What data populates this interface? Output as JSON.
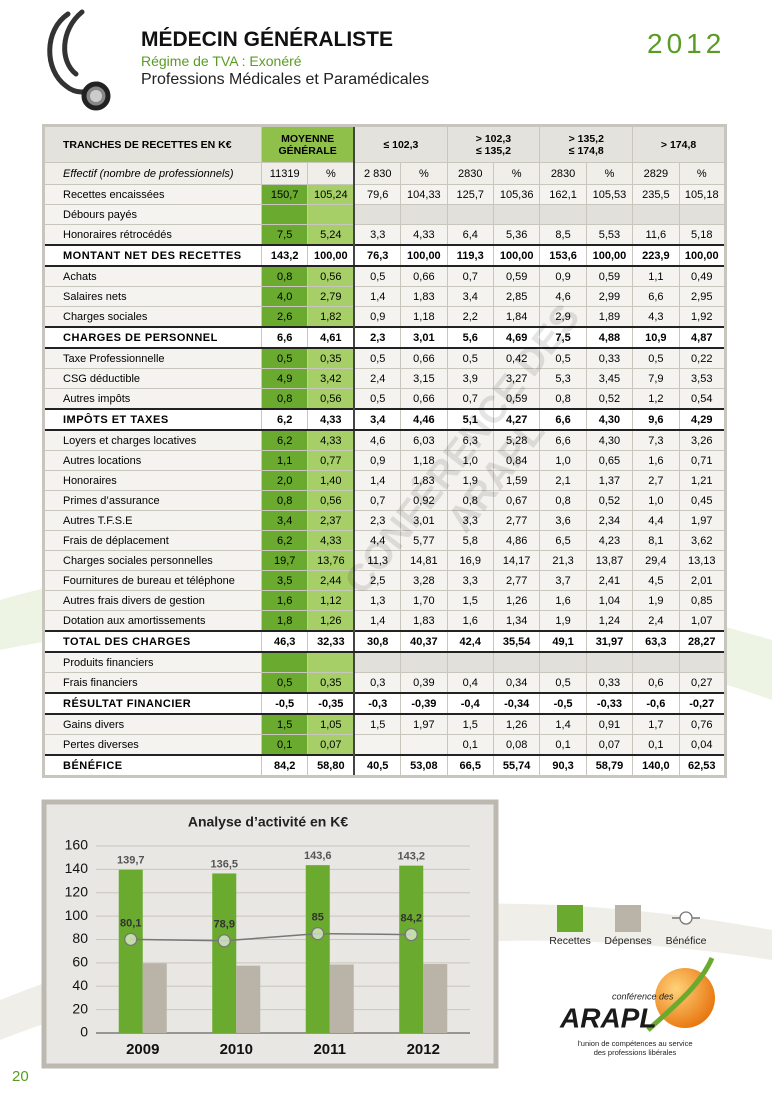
{
  "header": {
    "title": "MÉDECIN GÉNÉRALISTE",
    "subtitle": "Régime de TVA : Exonéré",
    "category": "Professions Médicales et Paramédicales",
    "year": "2012"
  },
  "watermark": "CONFÉRENCE DES ARAPL",
  "table": {
    "corner": "TRANCHES DE RECETTES EN K€",
    "groups": [
      [
        "MOYENNE",
        "GÉNÉRALE"
      ],
      [
        "≤ 102,3"
      ],
      [
        "> 102,3",
        "≤ 135,2"
      ],
      [
        "> 135,2",
        "≤ 174,8"
      ],
      [
        "> 174,8"
      ]
    ],
    "effectif": {
      "label": "Effectif (nombre de professionnels)",
      "cells": [
        "11319",
        "%",
        "2 830",
        "%",
        "2830",
        "%",
        "2830",
        "%",
        "2829",
        "%"
      ]
    },
    "rows": [
      {
        "label": "Recettes encaissées",
        "cells": [
          "150,7",
          "105,24",
          "79,6",
          "104,33",
          "125,7",
          "105,36",
          "162,1",
          "105,53",
          "235,5",
          "105,18"
        ]
      },
      {
        "label": "Débours payés",
        "cells": [
          null,
          null,
          null,
          null,
          null,
          null,
          null,
          null,
          null,
          null
        ]
      },
      {
        "label": "Honoraires rétrocédés",
        "cells": [
          "7,5",
          "5,24",
          "3,3",
          "4,33",
          "6,4",
          "5,36",
          "8,5",
          "5,53",
          "11,6",
          "5,18"
        ]
      },
      {
        "label": "MONTANT NET DES RECETTES",
        "bold": true,
        "cells": [
          "143,2",
          "100,00",
          "76,3",
          "100,00",
          "119,3",
          "100,00",
          "153,6",
          "100,00",
          "223,9",
          "100,00"
        ]
      },
      {
        "label": "Achats",
        "cells": [
          "0,8",
          "0,56",
          "0,5",
          "0,66",
          "0,7",
          "0,59",
          "0,9",
          "0,59",
          "1,1",
          "0,49"
        ]
      },
      {
        "label": "Salaires nets",
        "cells": [
          "4,0",
          "2,79",
          "1,4",
          "1,83",
          "3,4",
          "2,85",
          "4,6",
          "2,99",
          "6,6",
          "2,95"
        ]
      },
      {
        "label": "Charges sociales",
        "cells": [
          "2,6",
          "1,82",
          "0,9",
          "1,18",
          "2,2",
          "1,84",
          "2,9",
          "1,89",
          "4,3",
          "1,92"
        ]
      },
      {
        "label": "CHARGES DE PERSONNEL",
        "bold": true,
        "cells": [
          "6,6",
          "4,61",
          "2,3",
          "3,01",
          "5,6",
          "4,69",
          "7,5",
          "4,88",
          "10,9",
          "4,87"
        ]
      },
      {
        "label": "Taxe Professionnelle",
        "cells": [
          "0,5",
          "0,35",
          "0,5",
          "0,66",
          "0,5",
          "0,42",
          "0,5",
          "0,33",
          "0,5",
          "0,22"
        ]
      },
      {
        "label": "CSG déductible",
        "cells": [
          "4,9",
          "3,42",
          "2,4",
          "3,15",
          "3,9",
          "3,27",
          "5,3",
          "3,45",
          "7,9",
          "3,53"
        ]
      },
      {
        "label": "Autres impôts",
        "cells": [
          "0,8",
          "0,56",
          "0,5",
          "0,66",
          "0,7",
          "0,59",
          "0,8",
          "0,52",
          "1,2",
          "0,54"
        ]
      },
      {
        "label": "IMPÔTS ET TAXES",
        "bold": true,
        "cells": [
          "6,2",
          "4,33",
          "3,4",
          "4,46",
          "5,1",
          "4,27",
          "6,6",
          "4,30",
          "9,6",
          "4,29"
        ]
      },
      {
        "label": "Loyers et charges locatives",
        "cells": [
          "6,2",
          "4,33",
          "4,6",
          "6,03",
          "6,3",
          "5,28",
          "6,6",
          "4,30",
          "7,3",
          "3,26"
        ]
      },
      {
        "label": "Autres locations",
        "cells": [
          "1,1",
          "0,77",
          "0,9",
          "1,18",
          "1,0",
          "0,84",
          "1,0",
          "0,65",
          "1,6",
          "0,71"
        ]
      },
      {
        "label": "Honoraires",
        "cells": [
          "2,0",
          "1,40",
          "1,4",
          "1,83",
          "1,9",
          "1,59",
          "2,1",
          "1,37",
          "2,7",
          "1,21"
        ]
      },
      {
        "label": "Primes d’assurance",
        "cells": [
          "0,8",
          "0,56",
          "0,7",
          "0,92",
          "0,8",
          "0,67",
          "0,8",
          "0,52",
          "1,0",
          "0,45"
        ]
      },
      {
        "label": "Autres T.F.S.E",
        "cells": [
          "3,4",
          "2,37",
          "2,3",
          "3,01",
          "3,3",
          "2,77",
          "3,6",
          "2,34",
          "4,4",
          "1,97"
        ]
      },
      {
        "label": "Frais de déplacement",
        "cells": [
          "6,2",
          "4,33",
          "4,4",
          "5,77",
          "5,8",
          "4,86",
          "6,5",
          "4,23",
          "8,1",
          "3,62"
        ]
      },
      {
        "label": "Charges sociales personnelles",
        "cells": [
          "19,7",
          "13,76",
          "11,3",
          "14,81",
          "16,9",
          "14,17",
          "21,3",
          "13,87",
          "29,4",
          "13,13"
        ]
      },
      {
        "label": "Fournitures de bureau et téléphone",
        "cells": [
          "3,5",
          "2,44",
          "2,5",
          "3,28",
          "3,3",
          "2,77",
          "3,7",
          "2,41",
          "4,5",
          "2,01"
        ]
      },
      {
        "label": "Autres frais divers de gestion",
        "cells": [
          "1,6",
          "1,12",
          "1,3",
          "1,70",
          "1,5",
          "1,26",
          "1,6",
          "1,04",
          "1,9",
          "0,85"
        ]
      },
      {
        "label": "Dotation aux amortissements",
        "cells": [
          "1,8",
          "1,26",
          "1,4",
          "1,83",
          "1,6",
          "1,34",
          "1,9",
          "1,24",
          "2,4",
          "1,07"
        ]
      },
      {
        "label": "TOTAL DES CHARGES",
        "bold": true,
        "cells": [
          "46,3",
          "32,33",
          "30,8",
          "40,37",
          "42,4",
          "35,54",
          "49,1",
          "31,97",
          "63,3",
          "28,27"
        ]
      },
      {
        "label": "Produits financiers",
        "cells": [
          null,
          null,
          null,
          null,
          null,
          null,
          null,
          null,
          null,
          null
        ]
      },
      {
        "label": "Frais financiers",
        "cells": [
          "0,5",
          "0,35",
          "0,3",
          "0,39",
          "0,4",
          "0,34",
          "0,5",
          "0,33",
          "0,6",
          "0,27"
        ]
      },
      {
        "label": "RÉSULTAT FINANCIER",
        "bold": true,
        "cells": [
          "-0,5",
          "-0,35",
          "-0,3",
          "-0,39",
          "-0,4",
          "-0,34",
          "-0,5",
          "-0,33",
          "-0,6",
          "-0,27"
        ]
      },
      {
        "label": "Gains divers",
        "cells": [
          "1,5",
          "1,05",
          "1,5",
          "1,97",
          "1,5",
          "1,26",
          "1,4",
          "0,91",
          "1,7",
          "0,76"
        ]
      },
      {
        "label": "Pertes diverses",
        "cells": [
          "0,1",
          "0,07",
          null,
          null,
          "0,1",
          "0,08",
          "0,1",
          "0,07",
          "0,1",
          "0,04"
        ]
      },
      {
        "label": "BÉNÉFICE",
        "bold": true,
        "cells": [
          "84,2",
          "58,80",
          "40,5",
          "53,08",
          "66,5",
          "55,74",
          "90,3",
          "58,79",
          "140,0",
          "62,53"
        ]
      }
    ]
  },
  "chart_data": {
    "type": "bar",
    "title": "Analyse d’activité en K€",
    "categories": [
      "2009",
      "2010",
      "2011",
      "2012"
    ],
    "series": [
      {
        "name": "Recettes",
        "color": "#6aaa2e",
        "values": [
          139.7,
          136.5,
          143.6,
          143.2
        ],
        "value_labels": [
          "139,7",
          "136,5",
          "143,6",
          "143,2"
        ]
      },
      {
        "name": "Dépenses",
        "color": "#bab3a8",
        "values": [
          59.6,
          57.6,
          58.6,
          59
        ]
      },
      {
        "name": "Bénéfice",
        "type": "line",
        "color": "#777777",
        "values": [
          80.1,
          78.9,
          85,
          84.2
        ],
        "value_labels": [
          "80,1",
          "78,9",
          "85",
          "84,2"
        ]
      }
    ],
    "ylim": [
      0,
      160
    ],
    "yticks": [
      0,
      20,
      40,
      60,
      80,
      100,
      120,
      140,
      160
    ],
    "grid": true
  },
  "logo": {
    "top": "conférence des",
    "name": "ARAPL",
    "tagline": [
      "l’union de compétences au service",
      "des professions libérales"
    ]
  },
  "page_number": "20"
}
